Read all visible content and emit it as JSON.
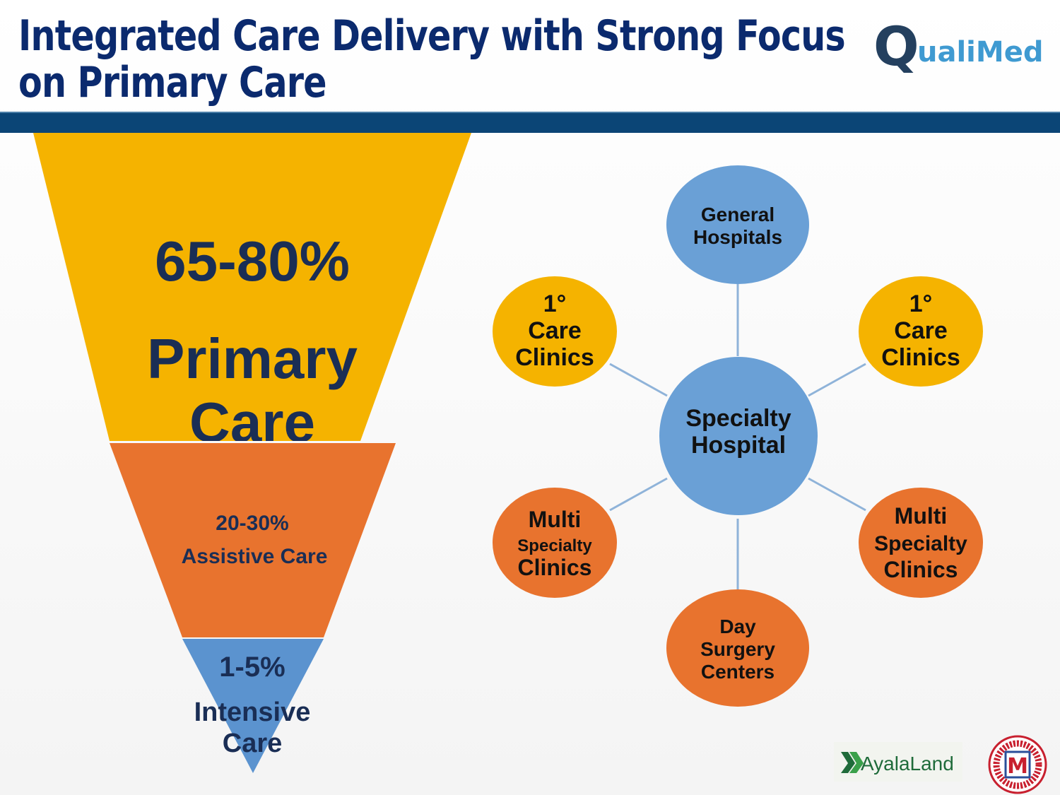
{
  "title": {
    "line1": "Integrated Care Delivery with Strong Focus",
    "line2": "on Primary Care"
  },
  "colors": {
    "title": "#0b2a6e",
    "header_bar": "#0b4576",
    "primary": "#f5b300",
    "assistive": "#e8732e",
    "intensive": "#5b93cf",
    "hospital": "#6aa0d6",
    "connector": "#8fb3d9",
    "text_dark": "#1a2e55"
  },
  "funnel": {
    "primary": {
      "percent": "65-80%",
      "label_line1": "Primary",
      "label_line2": "Care"
    },
    "assistive": {
      "percent": "20-30%",
      "label": "Assistive Care"
    },
    "intensive": {
      "percent": "1-5%",
      "label_line1": "Intensive",
      "label_line2": "Care"
    }
  },
  "network": {
    "center": {
      "lines": [
        "Specialty",
        "Hospital"
      ],
      "type": "hospital"
    },
    "nodes": [
      {
        "id": "general-hospitals",
        "lines": [
          "General",
          "Hospitals"
        ],
        "type": "hospital"
      },
      {
        "id": "care-clinics-left",
        "lines": [
          "1°",
          "Care",
          "Clinics"
        ],
        "type": "primary"
      },
      {
        "id": "care-clinics-right",
        "lines": [
          "1°",
          "Care",
          "Clinics"
        ],
        "type": "primary"
      },
      {
        "id": "multi-specialty-left",
        "lines": [
          "Multi",
          "Specialty",
          "Clinics"
        ],
        "type": "assistive"
      },
      {
        "id": "multi-specialty-right",
        "lines": [
          "Multi",
          "Specialty",
          "Clinics"
        ],
        "type": "assistive"
      },
      {
        "id": "day-surgery-centers",
        "lines": [
          "Day",
          "Surgery",
          "Centers"
        ],
        "type": "assistive"
      }
    ]
  },
  "logos": {
    "qualimed_q": "Q",
    "qualimed_rest": "ualiMed",
    "ayala": "AyalaLand",
    "mercado_letter": "M"
  }
}
